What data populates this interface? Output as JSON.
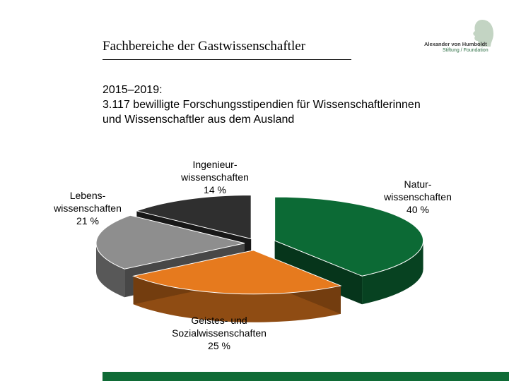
{
  "header": {
    "title": "Fachbereiche der Gastwissenschaftler",
    "logo_line1": "Alexander von Humboldt",
    "logo_line2": "Stiftung / Foundation"
  },
  "subtitle": {
    "line1": "2015–2019:",
    "line2": "3.117 bewilligte Forschungsstipendien für Wissenschaftlerinnen",
    "line3": "und Wissenschaftler aus dem Ausland"
  },
  "colors": {
    "natur": "#0c6a35",
    "geistes": "#e67a1e",
    "leben": "#8e8e8e",
    "ingenieur": "#2f2f2f",
    "brand_bar": "#0f6b36"
  },
  "chart_data": {
    "type": "pie",
    "title": "",
    "slices": [
      {
        "key": "natur",
        "label_lines": [
          "Natur-",
          "wissenschaften",
          "40 %"
        ],
        "value": 40
      },
      {
        "key": "geistes",
        "label_lines": [
          "Geistes- und",
          "Sozialwissenschaften",
          "25 %"
        ],
        "value": 25
      },
      {
        "key": "leben",
        "label_lines": [
          "Lebens-",
          "wissenschaften",
          "21 %"
        ],
        "value": 21
      },
      {
        "key": "ingenieur",
        "label_lines": [
          "Ingenieur-",
          "wissenschaften",
          "14 %"
        ],
        "value": 14
      }
    ]
  }
}
